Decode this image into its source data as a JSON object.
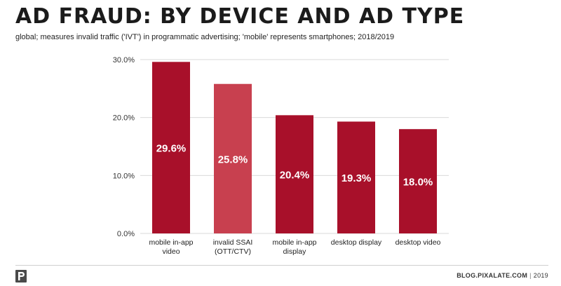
{
  "header": {
    "title": "AD FRAUD: BY DEVICE AND AD TYPE",
    "subtitle": "global; measures invalid traffic ('IVT') in programmatic advertising; 'mobile' represents smartphones; 2018/2019"
  },
  "footer": {
    "site": "BLOG.PIXALATE.COM",
    "separator": "|",
    "year": "2019",
    "logo_icon": "pixalate-p-logo-icon"
  },
  "chart_data": {
    "type": "bar",
    "categories": [
      [
        "mobile in-app",
        "video"
      ],
      [
        "invalid SSAI",
        "(OTT/CTV)"
      ],
      [
        "mobile in-app",
        "display"
      ],
      [
        "desktop display"
      ],
      [
        "desktop video"
      ]
    ],
    "values": [
      29.6,
      25.8,
      20.4,
      19.3,
      18.0
    ],
    "data_labels": [
      "29.6%",
      "25.8%",
      "20.4%",
      "19.3%",
      "18.0%"
    ],
    "bar_colors": [
      "#a8102a",
      "#c8404f",
      "#a8102a",
      "#a8102a",
      "#a8102a"
    ],
    "ylim": [
      0,
      30
    ],
    "yticks": [
      0,
      10,
      20,
      30
    ],
    "ytick_labels": [
      "0.0%",
      "10.0%",
      "20.0%",
      "30.0%"
    ],
    "grid": true,
    "gridline_color": "#d9d9d9",
    "label_color": "#ffffff",
    "xlabel": "",
    "ylabel": ""
  }
}
